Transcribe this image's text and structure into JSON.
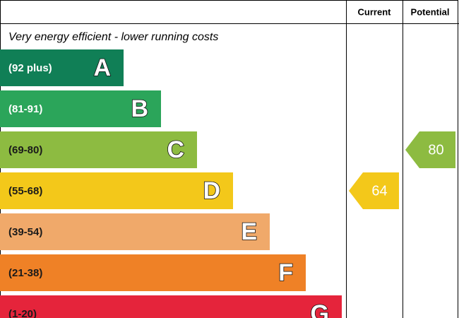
{
  "header": {
    "current": "Current",
    "potential": "Potential"
  },
  "top_note": "Very energy efficient - lower running costs",
  "bands": [
    {
      "range": "(92 plus)",
      "letter": "A",
      "color": "#107f56",
      "text_color": "#ffffff"
    },
    {
      "range": "(81-91)",
      "letter": "B",
      "color": "#2ba55a",
      "text_color": "#ffffff"
    },
    {
      "range": "(69-80)",
      "letter": "C",
      "color": "#8dbb41",
      "text_color": "#1a1a1a"
    },
    {
      "range": "(55-68)",
      "letter": "D",
      "color": "#f3c81a",
      "text_color": "#1a1a1a"
    },
    {
      "range": "(39-54)",
      "letter": "E",
      "color": "#f0a96a",
      "text_color": "#1a1a1a"
    },
    {
      "range": "(21-38)",
      "letter": "F",
      "color": "#ef8126",
      "text_color": "#1a1a1a"
    },
    {
      "range": "(1-20)",
      "letter": "G",
      "color": "#e5243b",
      "text_color": "#1a1a1a"
    }
  ],
  "current": {
    "value": 64,
    "color": "#f3c81a"
  },
  "potential": {
    "value": 80,
    "color": "#8dbb41"
  }
}
